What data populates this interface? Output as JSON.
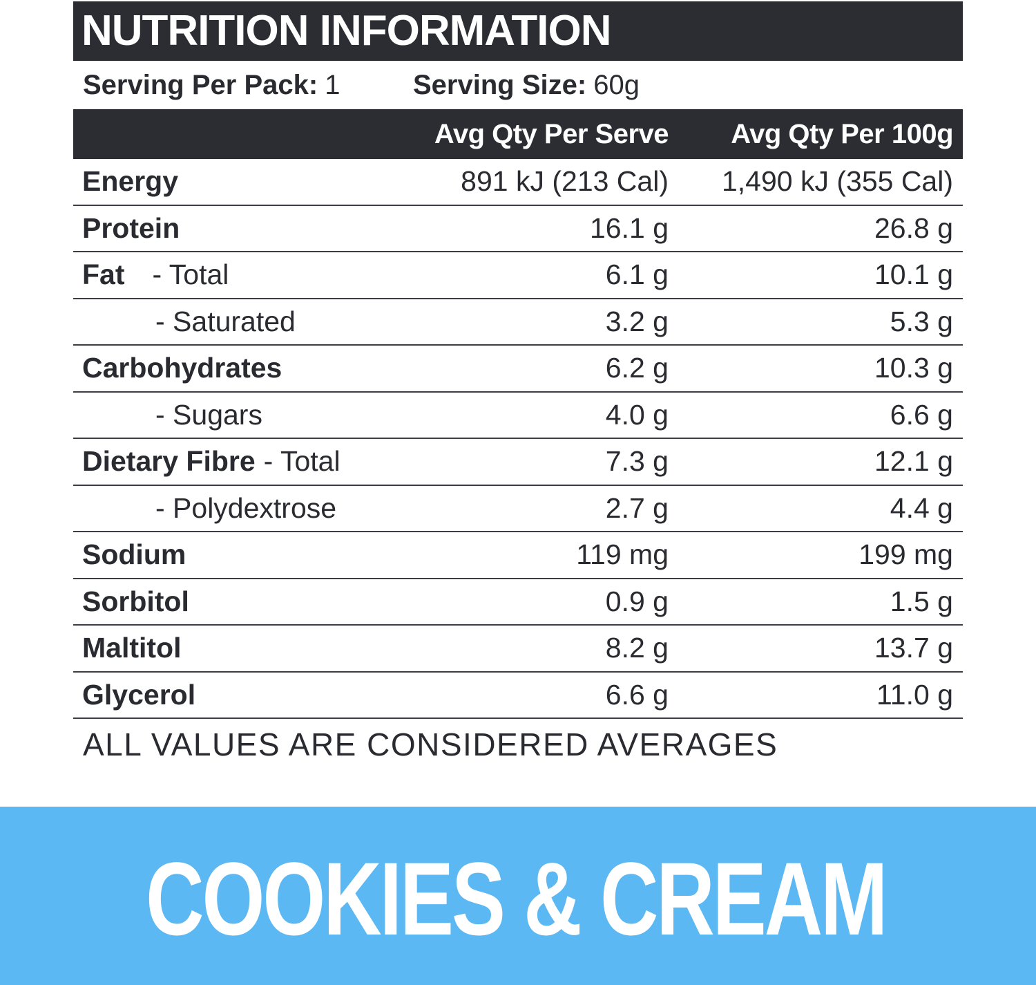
{
  "title": "NUTRITION INFORMATION",
  "serving": {
    "per_pack_label": "Serving Per Pack:",
    "per_pack_value": "1",
    "size_label": "Serving Size:",
    "size_value": "60g"
  },
  "columns": {
    "per_serve": "Avg Qty Per Serve",
    "per_100g": "Avg Qty Per 100g"
  },
  "rows": [
    {
      "name": "Energy",
      "sub": "",
      "per_serve": "891 kJ (213 Cal)",
      "per_100g": "1,490 kJ (355 Cal)"
    },
    {
      "name": "Protein",
      "sub": "",
      "per_serve": "16.1 g",
      "per_100g": "26.8 g"
    },
    {
      "name": "Fat",
      "sub": "- Total",
      "per_serve": "6.1 g",
      "per_100g": "10.1 g"
    },
    {
      "name": "",
      "sub": "- Saturated",
      "per_serve": "3.2 g",
      "per_100g": "5.3 g"
    },
    {
      "name": "Carbohydrates",
      "sub": "",
      "per_serve": "6.2 g",
      "per_100g": "10.3 g"
    },
    {
      "name": "",
      "sub": "- Sugars",
      "per_serve": "4.0 g",
      "per_100g": "6.6 g"
    },
    {
      "name": "Dietary Fibre",
      "sub": "- Total",
      "per_serve": "7.3 g",
      "per_100g": "12.1 g"
    },
    {
      "name": "",
      "sub": "- Polydextrose",
      "per_serve": "2.7 g",
      "per_100g": "4.4 g"
    },
    {
      "name": "Sodium",
      "sub": "",
      "per_serve": "119 mg",
      "per_100g": "199 mg"
    },
    {
      "name": "Sorbitol",
      "sub": "",
      "per_serve": "0.9 g",
      "per_100g": "1.5 g"
    },
    {
      "name": "Maltitol",
      "sub": "",
      "per_serve": "8.2 g",
      "per_100g": "13.7 g"
    },
    {
      "name": "Glycerol",
      "sub": "",
      "per_serve": "6.6 g",
      "per_100g": "11.0 g"
    }
  ],
  "footnote": "ALL VALUES ARE CONSIDERED AVERAGES",
  "flavor": "COOKIES & CREAM",
  "colors": {
    "header_bg": "#2b2d33",
    "text": "#2a2b30",
    "banner_bg": "#5bb8f2",
    "banner_text": "#ffffff"
  }
}
